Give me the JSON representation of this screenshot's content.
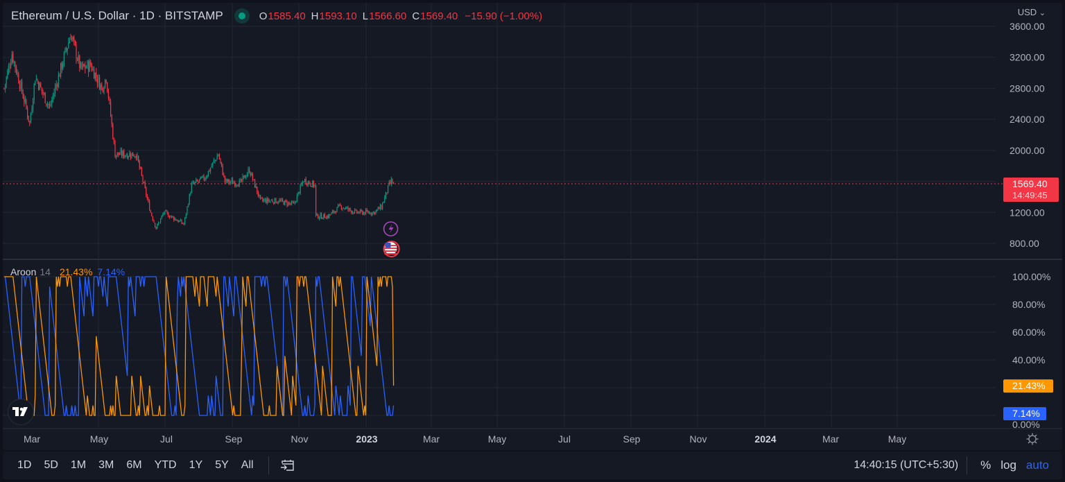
{
  "header": {
    "symbol_title": "Ethereum / U.S. Dollar · 1D · BITSTAMP",
    "ohlc": {
      "o_label": "O",
      "o": "1585.40",
      "h_label": "H",
      "h": "1593.10",
      "l_label": "L",
      "l": "1566.60",
      "c_label": "C",
      "c": "1569.40",
      "change": "−15.90 (−1.00%)"
    },
    "currency": "USD",
    "currency_chevron": "⌄"
  },
  "colors": {
    "background": "#151924",
    "grid": "#232733",
    "up": "#089981",
    "down": "#f23645",
    "aroon_up": "#ff9800",
    "aroon_down": "#2962ff",
    "last_price_bg": "#f23645",
    "axis_text": "#b2b5be"
  },
  "price_axis": {
    "labels": [
      "3600.00",
      "3200.00",
      "2800.00",
      "2400.00",
      "2000.00",
      "1200.00",
      "800.00"
    ],
    "last_price": "1569.40",
    "countdown": "14:49:45"
  },
  "aroon": {
    "name": "Aroon",
    "length": "14",
    "up_value": "21.43%",
    "down_value": "7.14%",
    "axis_labels": [
      "100.00%",
      "80.00%",
      "60.00%",
      "40.00%",
      "0.00%"
    ]
  },
  "time_axis": {
    "labels": [
      "Mar",
      "May",
      "Jul",
      "Sep",
      "Nov",
      "2023",
      "Mar",
      "May",
      "Jul",
      "Sep",
      "Nov",
      "2024",
      "Mar",
      "May"
    ],
    "bold": [
      false,
      false,
      false,
      false,
      false,
      true,
      false,
      false,
      false,
      false,
      false,
      true,
      false,
      false
    ]
  },
  "bottom_bar": {
    "ranges": [
      "1D",
      "5D",
      "1M",
      "3M",
      "6M",
      "YTD",
      "1Y",
      "5Y",
      "All"
    ],
    "clock": "14:40:15 (UTC+5:30)",
    "percent_label": "%",
    "log_label": "log",
    "auto_label": "auto"
  },
  "chart_data": {
    "type": "candlestick",
    "title": "Ethereum / U.S. Dollar · 1D · BITSTAMP",
    "xlabel": "",
    "ylabel": "USD",
    "ylim": [
      700,
      3650
    ],
    "grid": true,
    "x_range": [
      "2022-02-01",
      "2023-01-18"
    ],
    "price_keypoints": [
      {
        "date": "2022-02-01",
        "close": 2800
      },
      {
        "date": "2022-02-08",
        "close": 3250
      },
      {
        "date": "2022-02-20",
        "close": 2600
      },
      {
        "date": "2022-02-24",
        "close": 2350
      },
      {
        "date": "2022-03-01",
        "close": 2950
      },
      {
        "date": "2022-03-14",
        "close": 2550
      },
      {
        "date": "2022-04-02",
        "close": 3500
      },
      {
        "date": "2022-04-11",
        "close": 3050
      },
      {
        "date": "2022-04-20",
        "close": 3100
      },
      {
        "date": "2022-04-30",
        "close": 2800
      },
      {
        "date": "2022-05-04",
        "close": 2950
      },
      {
        "date": "2022-05-12",
        "close": 1950
      },
      {
        "date": "2022-05-31",
        "close": 1950
      },
      {
        "date": "2022-06-13",
        "close": 1200
      },
      {
        "date": "2022-06-18",
        "close": 1000
      },
      {
        "date": "2022-06-25",
        "close": 1200
      },
      {
        "date": "2022-07-13",
        "close": 1050
      },
      {
        "date": "2022-07-20",
        "close": 1550
      },
      {
        "date": "2022-08-01",
        "close": 1650
      },
      {
        "date": "2022-08-13",
        "close": 1950
      },
      {
        "date": "2022-08-19",
        "close": 1600
      },
      {
        "date": "2022-09-02",
        "close": 1580
      },
      {
        "date": "2022-09-10",
        "close": 1750
      },
      {
        "date": "2022-09-20",
        "close": 1350
      },
      {
        "date": "2022-10-05",
        "close": 1350
      },
      {
        "date": "2022-10-20",
        "close": 1300
      },
      {
        "date": "2022-10-29",
        "close": 1620
      },
      {
        "date": "2022-11-08",
        "close": 1550
      },
      {
        "date": "2022-11-09",
        "close": 1150
      },
      {
        "date": "2022-11-20",
        "close": 1150
      },
      {
        "date": "2022-12-01",
        "close": 1280
      },
      {
        "date": "2022-12-15",
        "close": 1200
      },
      {
        "date": "2022-12-31",
        "close": 1200
      },
      {
        "date": "2023-01-07",
        "close": 1270
      },
      {
        "date": "2023-01-14",
        "close": 1550
      },
      {
        "date": "2023-01-16",
        "close": 1600
      },
      {
        "date": "2023-01-18",
        "close": 1569.4
      }
    ],
    "last": {
      "open": 1585.4,
      "high": 1593.1,
      "low": 1566.6,
      "close": 1569.4,
      "change": -15.9,
      "change_pct": -1.0
    },
    "indicator": {
      "name": "Aroon",
      "length": 14,
      "ylim": [
        0,
        100
      ],
      "series": [
        {
          "name": "Aroon Up",
          "color": "#ff9800",
          "last": 21.43
        },
        {
          "name": "Aroon Down",
          "color": "#2962ff",
          "last": 7.14
        }
      ]
    },
    "events": [
      {
        "type": "lightning-event",
        "date": "2023-01-18"
      },
      {
        "type": "us-economic-event",
        "date": "2023-01-18"
      }
    ]
  }
}
